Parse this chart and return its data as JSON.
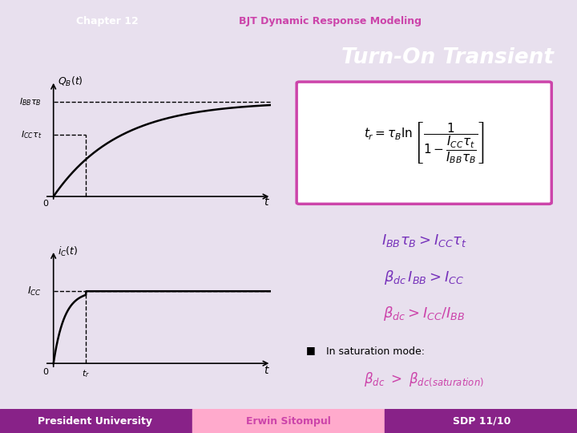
{
  "title_bar_left_color": "#aa3388",
  "title_bar_right_color": "#f0a0cc",
  "title_bar_text": "Chapter 12",
  "title_bar_subtitle": "BJT Dynamic Response Modeling",
  "slide_title": "Turn-On Transient",
  "slide_title_bg": "#7733bb",
  "slide_title_color": "white",
  "main_bg": "#7733bb",
  "content_bg": "#e8e0ee",
  "footer_left": "President University",
  "footer_center": "Erwin Sitompul",
  "footer_right": "SDP 11/10",
  "footer_left_bg": "#882288",
  "footer_center_bg": "#ffaacc",
  "footer_right_bg": "#882288",
  "graph_bg": "white",
  "IBB_tau_B": 1.0,
  "ICC_tau_t": 0.65,
  "ICC": 0.65,
  "tr_val": 0.75,
  "tau_B": 1.5,
  "curve_color": "black",
  "dashed_color": "black",
  "formula_box_color": "#cc44aa",
  "text_color_purple": "#7733bb",
  "text_color_pink": "#cc44aa",
  "fig_width": 7.2,
  "fig_height": 5.4,
  "dpi": 100
}
